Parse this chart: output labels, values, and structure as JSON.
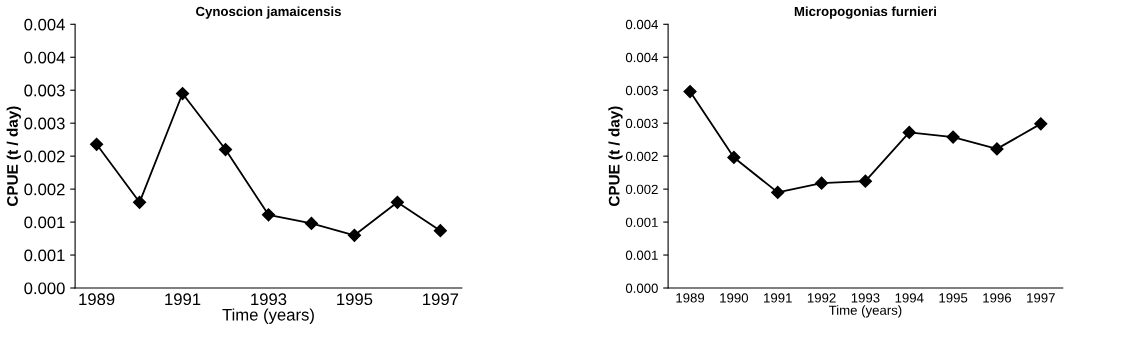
{
  "chart_data": [
    {
      "type": "line",
      "title": "Cynoscion jamaicensis",
      "xlabel": "Time (years)",
      "ylabel": "CPUE (t / day)",
      "categories": [
        "1989",
        null,
        "1991",
        null,
        "1993",
        null,
        "1995",
        null,
        "1997"
      ],
      "series": [
        {
          "color": "#000000",
          "values": [
            0.00218,
            0.0013,
            0.00295,
            0.0021,
            0.00111,
            0.00098,
            0.0008,
            0.0013,
            0.00087
          ]
        }
      ],
      "ylim": [
        0,
        0.004
      ],
      "yticks": [
        {
          "value": 0,
          "label": "0.000"
        },
        {
          "value": 0.0005,
          "label": "0.001"
        },
        {
          "value": 0.001,
          "label": "0.001"
        },
        {
          "value": 0.0015,
          "label": "0.002"
        },
        {
          "value": 0.002,
          "label": "0.002"
        },
        {
          "value": 0.0025,
          "label": "0.003"
        },
        {
          "value": 0.003,
          "label": "0.003"
        },
        {
          "value": 0.0035,
          "label": "0.004"
        },
        {
          "value": 0.004,
          "label": "0.004"
        }
      ],
      "marker": "diamond",
      "line_style": "solid",
      "grid": false,
      "legend": false
    },
    {
      "type": "line",
      "title": "Micropogonias furnieri",
      "xlabel": "Time (years)",
      "ylabel": "CPUE (t / day)",
      "categories": [
        "1989",
        "1990",
        "1991",
        "1992",
        "1993",
        "1994",
        "1995",
        "1996",
        "1997"
      ],
      "series": [
        {
          "color": "#000000",
          "values": [
            0.00298,
            0.00198,
            0.00145,
            0.00159,
            0.00162,
            0.00236,
            0.00229,
            0.00211,
            0.00249
          ]
        }
      ],
      "ylim": [
        0,
        0.004
      ],
      "yticks": [
        {
          "value": 0,
          "label": "0.000"
        },
        {
          "value": 0.0005,
          "label": "0.001"
        },
        {
          "value": 0.001,
          "label": "0.001"
        },
        {
          "value": 0.0015,
          "label": "0.002"
        },
        {
          "value": 0.002,
          "label": "0.002"
        },
        {
          "value": 0.0025,
          "label": "0.003"
        },
        {
          "value": 0.003,
          "label": "0.003"
        },
        {
          "value": 0.0035,
          "label": "0.004"
        },
        {
          "value": 0.004,
          "label": "0.004"
        }
      ],
      "marker": "diamond",
      "line_style": "solid",
      "grid": false,
      "legend": false
    }
  ]
}
